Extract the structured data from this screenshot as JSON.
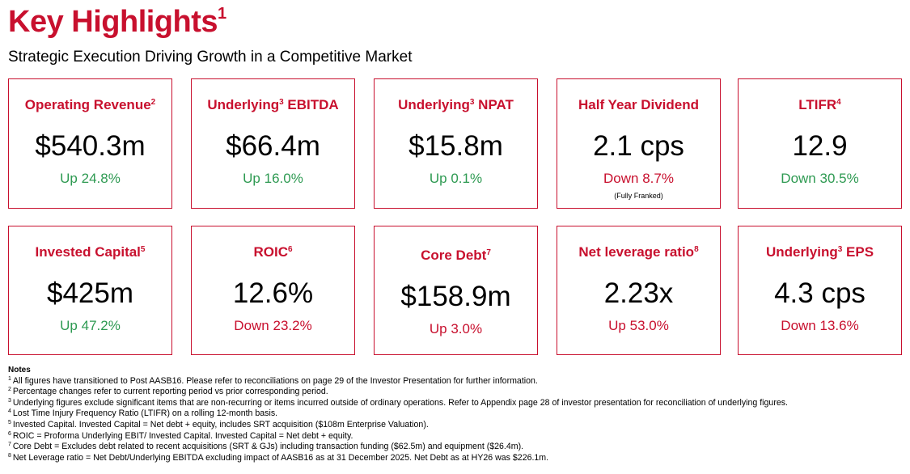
{
  "header": {
    "title": "Key Highlights",
    "title_sup": "1",
    "subtitle": "Strategic Execution Driving Growth in a Competitive Market"
  },
  "cards": [
    {
      "title": [
        {
          "text": "Operating Revenue"
        },
        {
          "sup": "2"
        }
      ],
      "value": "$540.3m",
      "change": "Up 24.8%",
      "change_color": "#2e9a52"
    },
    {
      "title": [
        {
          "text": "Underlying"
        },
        {
          "sup": "3"
        },
        {
          "text": " EBITDA"
        }
      ],
      "value": "$66.4m",
      "change": "Up 16.0%",
      "change_color": "#2e9a52"
    },
    {
      "title": [
        {
          "text": "Underlying"
        },
        {
          "sup": "3"
        },
        {
          "text": " NPAT"
        }
      ],
      "value": "$15.8m",
      "change": "Up 0.1%",
      "change_color": "#2e9a52"
    },
    {
      "title": [
        {
          "text": "Half Year Dividend"
        }
      ],
      "value": "2.1 cps",
      "change": "Down 8.7%",
      "change_color": "#c8102e",
      "note": "(Fully Franked)"
    },
    {
      "title": [
        {
          "text": "LTIFR"
        },
        {
          "sup": "4"
        }
      ],
      "value": "12.9",
      "change": "Down 30.5%",
      "change_color": "#2e9a52"
    },
    {
      "title": [
        {
          "text": "Invested Capital"
        },
        {
          "sup": "5"
        }
      ],
      "value": "$425m",
      "change": "Up 47.2%",
      "change_color": "#2e9a52"
    },
    {
      "title": [
        {
          "text": "ROIC"
        },
        {
          "sup": "6"
        }
      ],
      "value": "12.6%",
      "change": "Down 23.2%",
      "change_color": "#c8102e"
    },
    {
      "title": [
        {
          "text": "Core Debt"
        },
        {
          "sup": "7"
        }
      ],
      "value": "$158.9m",
      "change": "Up 3.0%",
      "change_color": "#c8102e"
    },
    {
      "title": [
        {
          "text": "Net leverage ratio"
        },
        {
          "sup": "8"
        }
      ],
      "value": "2.23x",
      "change": "Up 53.0%",
      "change_color": "#c8102e"
    },
    {
      "title": [
        {
          "text": "Underlying"
        },
        {
          "sup": "3"
        },
        {
          "text": " EPS"
        }
      ],
      "value": "4.3 cps",
      "change": "Down 13.6%",
      "change_color": "#c8102e"
    }
  ],
  "notes": {
    "heading": "Notes",
    "items": [
      {
        "num": "1",
        "text": "All figures have transitioned to Post AASB16. Please refer to reconciliations on page 29 of the Investor Presentation for further information."
      },
      {
        "num": "2",
        "text": "Percentage changes refer to current reporting period vs prior corresponding period."
      },
      {
        "num": "3",
        "text": "Underlying figures exclude significant items that are non-recurring or items incurred outside of ordinary operations. Refer to Appendix page 28 of investor presentation for reconciliation of underlying figures."
      },
      {
        "num": "4",
        "text": "Lost Time Injury Frequency Ratio (LTIFR) on a rolling 12-month basis."
      },
      {
        "num": "5",
        "text": "Invested Capital. Invested Capital = Net debt + equity, includes SRT acquisition ($108m Enterprise Valuation)."
      },
      {
        "num": "6",
        "text": "ROIC = Proforma Underlying EBIT/ Invested Capital. Invested Capital = Net debt + equity."
      },
      {
        "num": "7",
        "text": "Core Debt = Excludes debt related to recent acquisitions (SRT & GJs) including transaction funding ($62.5m) and equipment ($26.4m)."
      },
      {
        "num": "8",
        "text": "Net Leverage ratio = Net Debt/Underlying EBITDA excluding impact of AASB16 as at 31 December 2025. Net Debt as at HY26 was $226.1m."
      }
    ]
  }
}
